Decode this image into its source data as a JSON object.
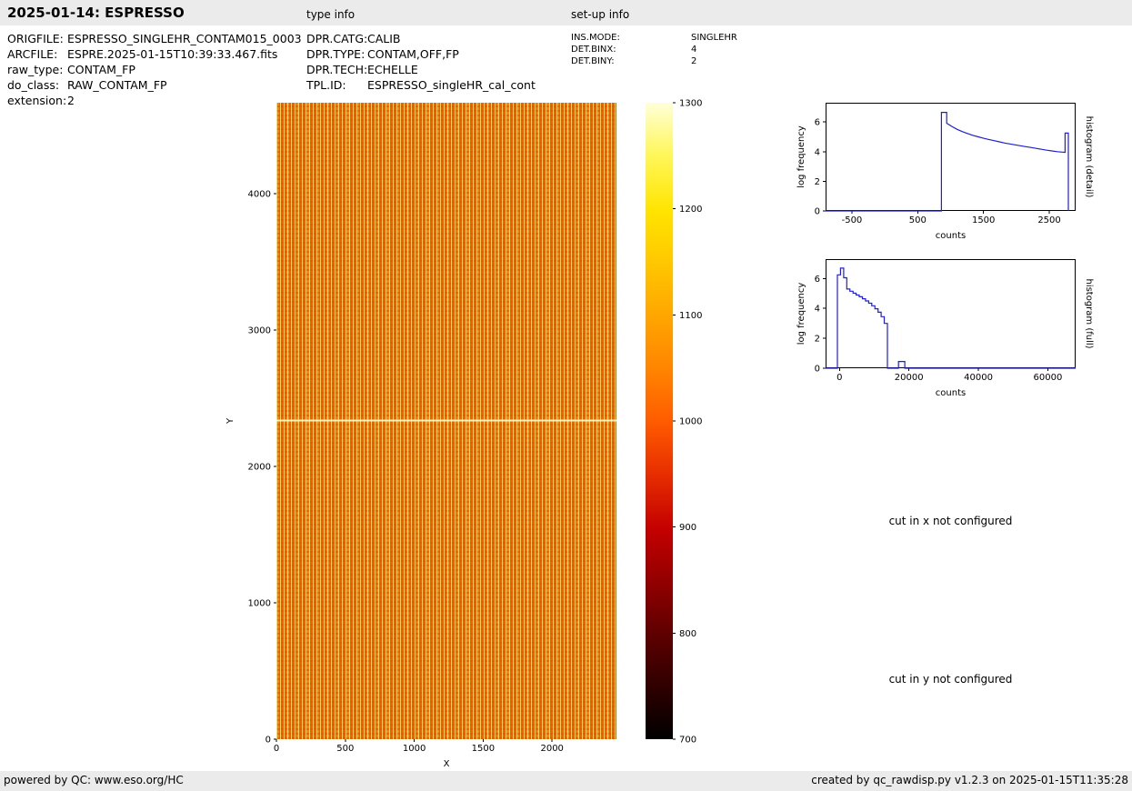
{
  "page": {
    "title": "2025-01-14: ESPRESSO",
    "type_info_header": "type info",
    "setup_info_header": "set-up info",
    "footer_left": "powered by QC: www.eso.org/HC",
    "footer_right": "created by qc_rawdisp.py v1.2.3 on 2025-01-15T11:35:28"
  },
  "meta": {
    "left": [
      {
        "label": "ORIGFILE:",
        "value": "ESPRESSO_SINGLEHR_CONTAM015_0003"
      },
      {
        "label": "ARCFILE:",
        "value": "ESPRE.2025-01-15T10:39:33.467.fits"
      },
      {
        "label": "raw_type:",
        "value": "CONTAM_FP"
      },
      {
        "label": "do_class:",
        "value": "RAW_CONTAM_FP"
      },
      {
        "label": "extension:",
        "value": "2"
      }
    ],
    "type_info": [
      {
        "label": "DPR.CATG:",
        "value": "CALIB"
      },
      {
        "label": "DPR.TYPE:",
        "value": "CONTAM,OFF,FP"
      },
      {
        "label": "DPR.TECH:",
        "value": "ECHELLE"
      },
      {
        "label": "TPL.ID:",
        "value": "ESPRESSO_singleHR_cal_cont"
      }
    ],
    "setup_info": [
      {
        "label": "INS.MODE:",
        "value": "SINGLEHR"
      },
      {
        "label": "DET.BINX:",
        "value": "4"
      },
      {
        "label": "DET.BINY:",
        "value": "2"
      }
    ]
  },
  "messages": {
    "cut_x": "cut in x not configured",
    "cut_y": "cut in y not configured"
  },
  "chart_data": [
    {
      "id": "detector_image",
      "type": "heatmap",
      "xlabel": "X",
      "ylabel": "Y",
      "ylabel_offset": -48,
      "xlim": [
        0,
        2467
      ],
      "ylim": [
        0,
        4667
      ],
      "xticks": [
        0,
        500,
        1000,
        1500,
        2000
      ],
      "yticks": [
        0,
        1000,
        2000,
        3000,
        4000
      ],
      "frame": false,
      "colormap": "hot",
      "value_range": [
        700,
        1300
      ]
    },
    {
      "id": "colorbar",
      "type": "colorbar",
      "ylim": [
        700,
        1300
      ],
      "yticks": [
        700,
        800,
        900,
        1000,
        1100,
        1200,
        1300
      ],
      "ticks_right": true,
      "frame": false,
      "colormap": "hot"
    },
    {
      "id": "hist_detail",
      "type": "line",
      "xlabel": "counts",
      "ylabel": "log frequency",
      "ylabel_offset": -24,
      "right_label": "histogram (detail)",
      "line_color": "#2020cc",
      "frame": true,
      "xlim": [
        -900,
        2900
      ],
      "ylim": [
        0,
        7.3
      ],
      "xticks": [
        -500,
        500,
        1500,
        2500
      ],
      "yticks": [
        0,
        2,
        4,
        6
      ],
      "points": [
        [
          -900,
          0
        ],
        [
          860,
          0
        ],
        [
          860,
          6.65
        ],
        [
          940,
          6.65
        ],
        [
          940,
          5.92
        ],
        [
          1020,
          5.7
        ],
        [
          1100,
          5.5
        ],
        [
          1180,
          5.35
        ],
        [
          1260,
          5.22
        ],
        [
          1340,
          5.1
        ],
        [
          1420,
          5.0
        ],
        [
          1500,
          4.9
        ],
        [
          1580,
          4.82
        ],
        [
          1660,
          4.74
        ],
        [
          1740,
          4.66
        ],
        [
          1820,
          4.58
        ],
        [
          1900,
          4.52
        ],
        [
          1980,
          4.46
        ],
        [
          2060,
          4.4
        ],
        [
          2140,
          4.34
        ],
        [
          2220,
          4.28
        ],
        [
          2300,
          4.22
        ],
        [
          2380,
          4.16
        ],
        [
          2460,
          4.1
        ],
        [
          2540,
          4.05
        ],
        [
          2620,
          4.0
        ],
        [
          2700,
          3.97
        ],
        [
          2740,
          3.95
        ],
        [
          2740,
          5.25
        ],
        [
          2790,
          5.25
        ],
        [
          2790,
          0
        ]
      ]
    },
    {
      "id": "hist_full",
      "type": "line",
      "xlabel": "counts",
      "ylabel": "log frequency",
      "ylabel_offset": -24,
      "right_label": "histogram (full)",
      "line_color": "#2020cc",
      "frame": true,
      "xlim": [
        -4000,
        68000
      ],
      "ylim": [
        0,
        7.3
      ],
      "xticks": [
        0,
        20000,
        40000,
        60000
      ],
      "yticks": [
        0,
        2,
        4,
        6
      ],
      "points": [
        [
          -4000,
          0
        ],
        [
          -600,
          0
        ],
        [
          -600,
          6.25
        ],
        [
          300,
          6.25
        ],
        [
          300,
          6.7
        ],
        [
          1200,
          6.7
        ],
        [
          1200,
          6.05
        ],
        [
          2100,
          6.05
        ],
        [
          2100,
          5.3
        ],
        [
          3000,
          5.3
        ],
        [
          3000,
          5.15
        ],
        [
          3900,
          5.15
        ],
        [
          3900,
          5.02
        ],
        [
          4800,
          5.02
        ],
        [
          4800,
          4.9
        ],
        [
          5700,
          4.9
        ],
        [
          5700,
          4.78
        ],
        [
          6600,
          4.78
        ],
        [
          6600,
          4.65
        ],
        [
          7500,
          4.65
        ],
        [
          7500,
          4.5
        ],
        [
          8400,
          4.5
        ],
        [
          8400,
          4.35
        ],
        [
          9300,
          4.35
        ],
        [
          9300,
          4.18
        ],
        [
          10200,
          4.18
        ],
        [
          10200,
          3.98
        ],
        [
          11100,
          3.98
        ],
        [
          11100,
          3.75
        ],
        [
          12000,
          3.75
        ],
        [
          12000,
          3.45
        ],
        [
          12900,
          3.45
        ],
        [
          12900,
          3.0
        ],
        [
          13800,
          3.0
        ],
        [
          13800,
          0
        ],
        [
          17000,
          0
        ],
        [
          17000,
          0.45
        ],
        [
          18800,
          0.45
        ],
        [
          18800,
          0
        ],
        [
          68000,
          0
        ]
      ]
    }
  ]
}
